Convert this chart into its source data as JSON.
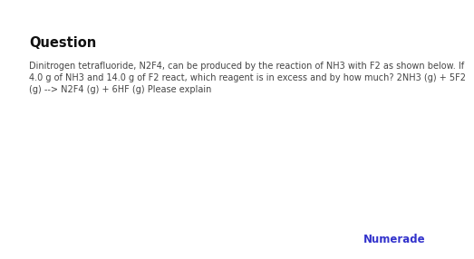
{
  "background_color": "#ffffff",
  "title": "Question",
  "title_fontsize": 10.5,
  "title_font": "DejaVu Sans",
  "title_color": "#111111",
  "body_lines": [
    "Dinitrogen tetrafluoride, N2F4, can be produced by the reaction of NH3 with F2 as shown below. If",
    "4.0 g of NH3 and 14.0 g of F2 react, which reagent is in excess and by how much? 2NH3 (g) + 5F2",
    "(g) --> N2F4 (g) + 6HF (g) Please explain"
  ],
  "body_fontsize": 7.0,
  "body_color": "#444444",
  "numerade_text": "Numerade",
  "numerade_color": "#3333cc",
  "numerade_fontsize": 8.5
}
